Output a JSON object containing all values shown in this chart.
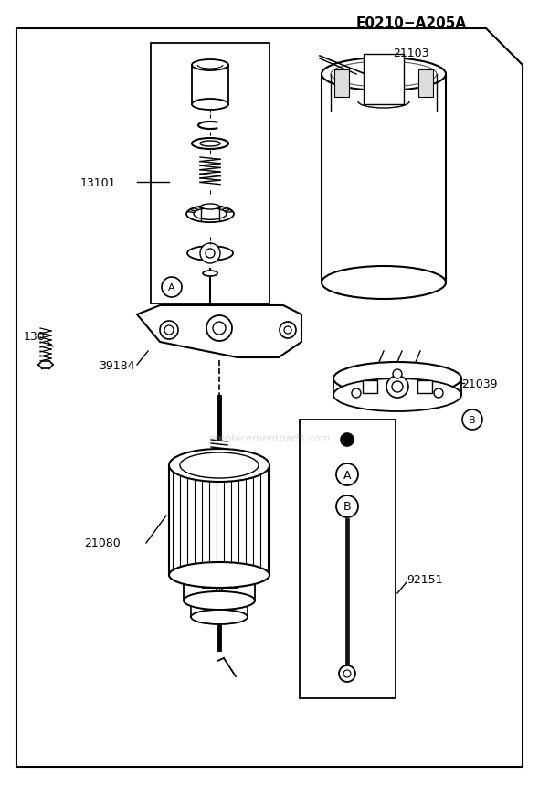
{
  "title": "E0210−A205A",
  "background_color": "#ffffff",
  "line_color": "#000000",
  "figsize": [
    5.9,
    8.62
  ],
  "dpi": 100,
  "part_labels": [
    "21103",
    "13101",
    "130",
    "39184",
    "21080",
    "21039",
    "92151"
  ],
  "watermark": "ereplacementparts.com"
}
